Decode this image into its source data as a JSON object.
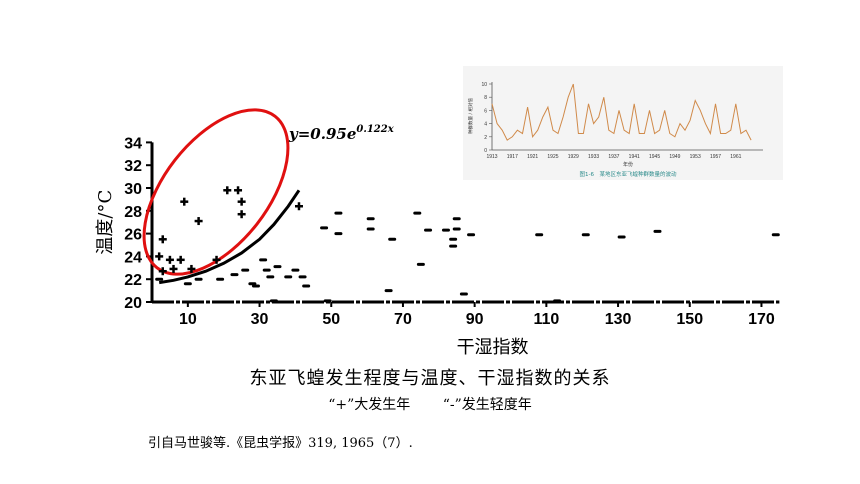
{
  "chart_data": [
    {
      "type": "scatter",
      "xlabel": "干湿指数",
      "ylabel": "温度/°C",
      "xlim": [
        0,
        180
      ],
      "ylim": [
        20,
        34
      ],
      "xticks": [
        10,
        30,
        50,
        70,
        90,
        110,
        130,
        150,
        170
      ],
      "yticks": [
        20,
        22,
        24,
        26,
        28,
        30,
        32,
        34
      ],
      "equation": "y=0.95e",
      "equation_exp": "0.122x",
      "series": [
        {
          "marker": "+",
          "points": [
            [
              2,
              24
            ],
            [
              3,
              25.5
            ],
            [
              3,
              22.7
            ],
            [
              5,
              23.7
            ],
            [
              6,
              22.9
            ],
            [
              8,
              23.7
            ],
            [
              9,
              28.8
            ],
            [
              11,
              22.9
            ],
            [
              13,
              27.1
            ],
            [
              18,
              23.7
            ],
            [
              21,
              29.8
            ],
            [
              24,
              29.8
            ],
            [
              25,
              28.8
            ],
            [
              25,
              27.7
            ],
            [
              41,
              28.4
            ]
          ]
        },
        {
          "marker": "-",
          "points": [
            [
              2,
              22
            ],
            [
              10,
              21.6
            ],
            [
              13,
              22
            ],
            [
              19,
              22
            ],
            [
              23,
              22.4
            ],
            [
              26,
              22.8
            ],
            [
              28,
              21.6
            ],
            [
              29,
              21.4
            ],
            [
              31,
              23.7
            ],
            [
              32,
              22.8
            ],
            [
              33,
              22.2
            ],
            [
              34,
              20.1
            ],
            [
              35,
              23.1
            ],
            [
              38,
              22.2
            ],
            [
              40,
              22.8
            ],
            [
              42,
              22.2
            ],
            [
              43,
              21.4
            ],
            [
              48,
              26.5
            ],
            [
              52,
              26
            ],
            [
              52,
              27.8
            ],
            [
              61,
              27.3
            ],
            [
              61,
              26.4
            ],
            [
              66,
              21
            ],
            [
              67,
              25.5
            ],
            [
              74,
              27.8
            ],
            [
              75,
              23.3
            ],
            [
              77,
              26.3
            ],
            [
              82,
              26.3
            ],
            [
              84,
              25.5
            ],
            [
              84,
              24.9
            ],
            [
              85,
              27.3
            ],
            [
              85,
              26.4
            ],
            [
              87,
              20.7
            ],
            [
              89,
              25.9
            ],
            [
              108,
              25.9
            ],
            [
              121,
              25.9
            ],
            [
              131,
              25.7
            ],
            [
              141,
              26.2
            ],
            [
              174,
              25.9
            ],
            [
              49,
              20.1
            ],
            [
              113,
              20.1
            ]
          ]
        }
      ]
    },
    {
      "type": "line",
      "ylabel": "种群数量 / 相对值",
      "xlabel": "年份",
      "ylim": [
        0,
        10
      ],
      "yticks": [
        0,
        2,
        4,
        6,
        8,
        10
      ],
      "xticks": [
        1913,
        1917,
        1921,
        1925,
        1929,
        1933,
        1937,
        1941,
        1945,
        1949,
        1953,
        1957,
        1961
      ],
      "x": [
        1913,
        1914,
        1915,
        1916,
        1917,
        1918,
        1919,
        1920,
        1921,
        1922,
        1923,
        1924,
        1925,
        1926,
        1927,
        1928,
        1929,
        1930,
        1931,
        1932,
        1933,
        1934,
        1935,
        1936,
        1937,
        1938,
        1939,
        1940,
        1941,
        1942,
        1943,
        1944,
        1945,
        1946,
        1947,
        1948,
        1949,
        1950,
        1951,
        1952,
        1953,
        1954,
        1955,
        1956,
        1957,
        1958,
        1959,
        1960,
        1961,
        1962,
        1963,
        1964
      ],
      "series": [
        {
          "color": "#d08a4a",
          "values": [
            7,
            4,
            3,
            1.5,
            2,
            3,
            2.5,
            6.5,
            2,
            3,
            5,
            6.5,
            3,
            2.5,
            5,
            8,
            10,
            2.5,
            2.5,
            7,
            4,
            5,
            8,
            3,
            2.5,
            6,
            3,
            2.5,
            7,
            2.5,
            2.5,
            6,
            2.5,
            3,
            6,
            2.5,
            2,
            4,
            3,
            4.5,
            7.5,
            6,
            4,
            2.5,
            7,
            2.5,
            2.5,
            3,
            7,
            2.5,
            3,
            1.5
          ]
        }
      ],
      "caption": "图1-6　某地区东亚飞蝗种群数量的波动"
    }
  ],
  "caption_title": "东亚飞蝗发生程度与温度、干湿指数的关系",
  "legend_plus": "“+”大发生年",
  "legend_minus": "“-”发生轻度年",
  "citation": "引自马世骏等.《昆虫学报》319, 1965（7）."
}
